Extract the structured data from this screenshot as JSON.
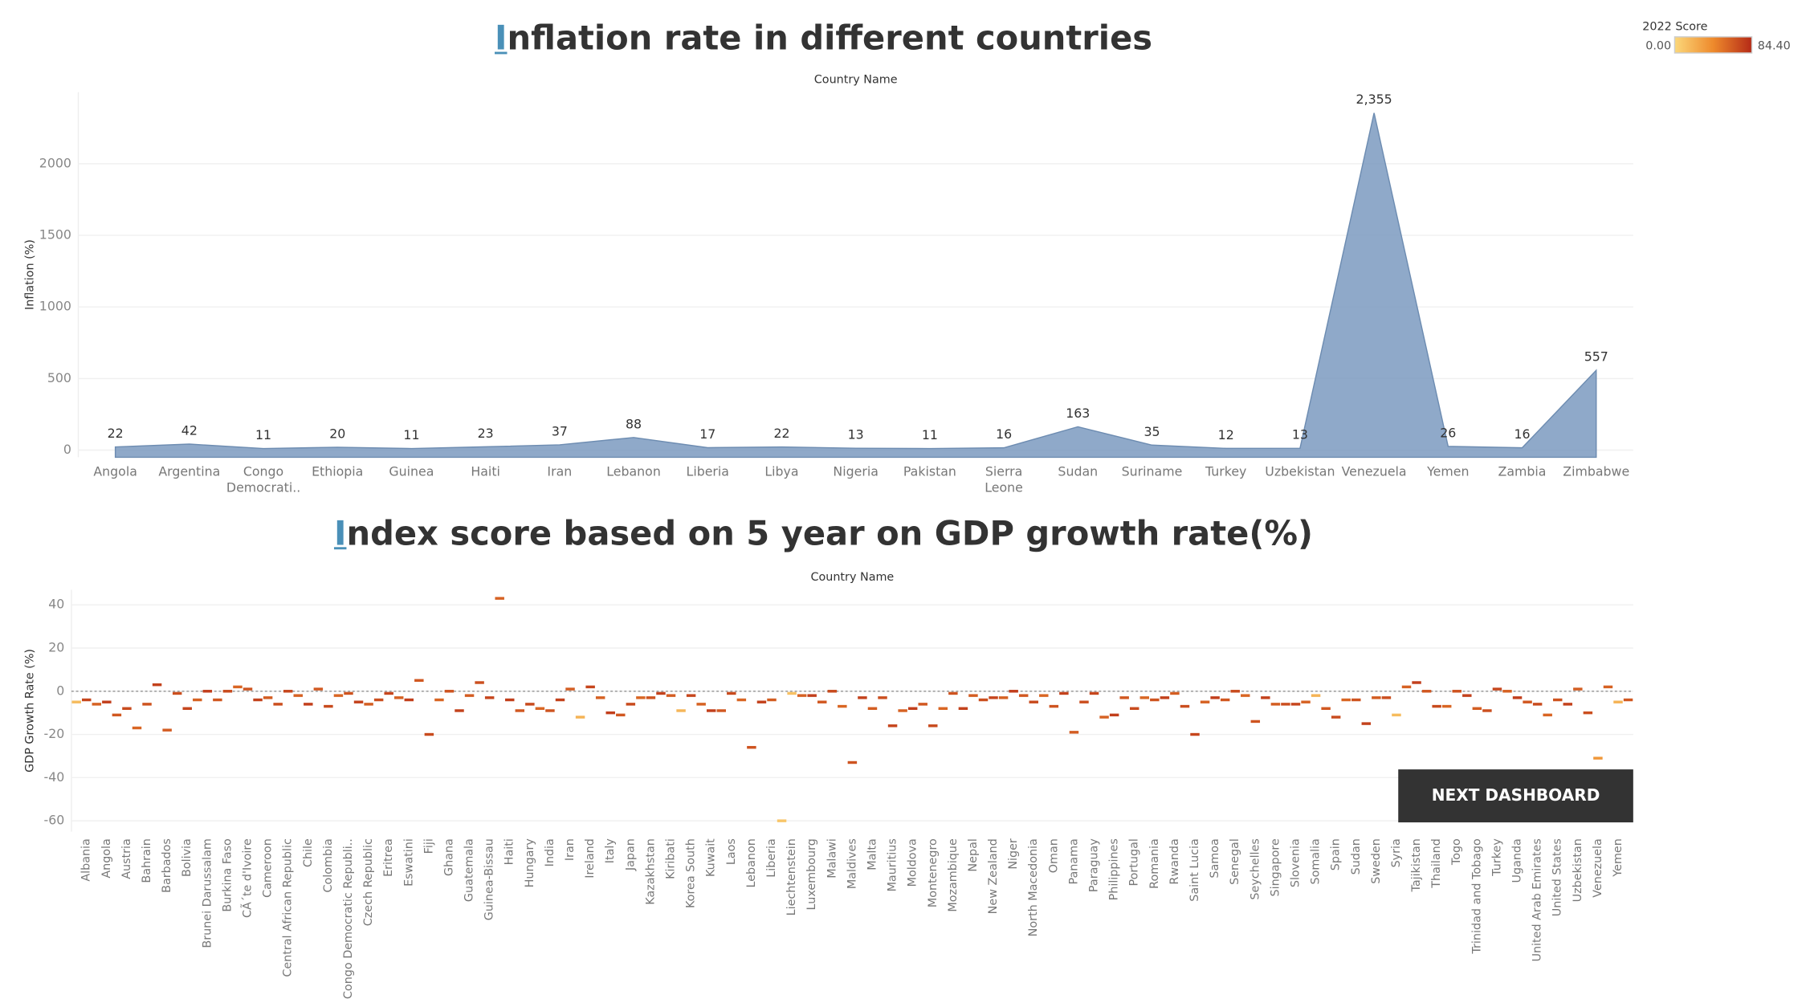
{
  "chart_data": [
    {
      "type": "area",
      "title": "Inflation rate in different countries",
      "x_label": "Country Name",
      "y_label": "Inflation (%)",
      "categories": [
        "Angola",
        "Argentina",
        "Congo Democrati..",
        "Ethiopia",
        "Guinea",
        "Haiti",
        "Iran",
        "Lebanon",
        "Liberia",
        "Libya",
        "Nigeria",
        "Pakistan",
        "Sierra Leone",
        "Sudan",
        "Suriname",
        "Turkey",
        "Uzbekistan",
        "Venezuela",
        "Yemen",
        "Zambia",
        "Zimbabwe"
      ],
      "values": [
        22,
        42,
        11,
        20,
        11,
        23,
        37,
        88,
        17,
        22,
        13,
        11,
        16,
        163,
        35,
        12,
        13,
        2355,
        26,
        16,
        557
      ],
      "value_labels": [
        "22",
        "42",
        "11",
        "20",
        "11",
        "23",
        "37",
        "88",
        "17",
        "22",
        "13",
        "11",
        "16",
        "163",
        "35",
        "12",
        "13",
        "2,355",
        "26",
        "16",
        "557"
      ],
      "color": "#7b9abf",
      "ylim": [
        -50,
        2500
      ],
      "yticks": [
        0,
        500,
        1000,
        1500,
        2000
      ],
      "grid": true
    },
    {
      "type": "gantt",
      "title": "Index score based on 5 year on GDP growth rate(%)",
      "x_label": "Country Name",
      "y_label": "GDP Growth Rate (%)",
      "categories": [
        null,
        "Albania",
        null,
        "Angola",
        null,
        "Austria",
        null,
        "Bahrain",
        null,
        "Barbados",
        null,
        "Bolivia",
        null,
        "Brunei Darussalam",
        null,
        "Burkina Faso",
        null,
        "CÃ´te d'Ivoire",
        null,
        "Cameroon",
        null,
        "Central African Republic",
        null,
        "Chile",
        null,
        "Colombia",
        null,
        "Congo Democratic Republi..",
        null,
        "Czech Republic",
        null,
        "Eritrea",
        null,
        "Eswatini",
        null,
        "Fiji",
        null,
        "Ghana",
        null,
        "Guatemala",
        null,
        "Guinea-Bissau",
        null,
        "Haiti",
        null,
        "Hungary",
        null,
        "India",
        null,
        "Iran",
        null,
        "Ireland",
        null,
        "Italy",
        null,
        "Japan",
        null,
        "Kazakhstan",
        null,
        "Kiribati",
        null,
        "Korea South",
        null,
        "Kuwait",
        null,
        "Laos",
        null,
        "Lebanon",
        null,
        "Liberia",
        null,
        "Liechtenstein",
        null,
        "Luxembourg",
        null,
        "Malawi",
        null,
        "Maldives",
        null,
        "Malta",
        null,
        "Mauritius",
        null,
        "Moldova",
        null,
        "Montenegro",
        null,
        "Mozambique",
        null,
        "Nepal",
        null,
        "New Zealand",
        null,
        "Niger",
        null,
        "North Macedonia",
        null,
        "Oman",
        null,
        "Panama",
        null,
        "Paraguay",
        null,
        "Philippines",
        null,
        "Portugal",
        null,
        "Romania",
        null,
        "Rwanda",
        null,
        "Saint Lucia",
        null,
        "Samoa",
        null,
        "Senegal",
        null,
        "Seychelles",
        null,
        "Singapore",
        null,
        "Slovenia",
        null,
        "Somalia",
        null,
        "Spain",
        null,
        "Sudan",
        null,
        "Sweden",
        null,
        "Syria",
        null,
        "Tajikistan",
        null,
        "Thailand",
        null,
        "Togo",
        null,
        "Trinidad and Tobago",
        null,
        "Turkey",
        null,
        "Uganda",
        null,
        "United Arab Emirates",
        null,
        "United States",
        null,
        "Uzbekistan",
        null,
        "Venezuela",
        null,
        "Yemen",
        null
      ],
      "values": [
        -5,
        -4,
        -6,
        -5,
        -11,
        -8,
        -17,
        -6,
        3,
        -18,
        -1,
        -8,
        -4,
        0,
        -4,
        0,
        2,
        1,
        -4,
        -3,
        -6,
        0,
        -2,
        -6,
        1,
        -7,
        -2,
        -1,
        -5,
        -6,
        -4,
        -1,
        -3,
        -4,
        5,
        -20,
        -4,
        0,
        -9,
        -2,
        4,
        -3,
        43,
        -4,
        -9,
        -6,
        -8,
        -9,
        -4,
        1,
        -12,
        2,
        -3,
        -10,
        -11,
        -6,
        -3,
        -3,
        -1,
        -2,
        -9,
        -2,
        -6,
        -9,
        -9,
        -1,
        -4,
        -26,
        -5,
        -4,
        -60,
        -1,
        -2,
        -2,
        -5,
        0,
        -7,
        -33,
        -3,
        -8,
        -3,
        -16,
        -9,
        -8,
        -6,
        -16,
        -8,
        -1,
        -8,
        -2,
        -4,
        -3,
        -3,
        0,
        -2,
        -5,
        -2,
        -7,
        -1,
        -19,
        -5,
        -1,
        -12,
        -11,
        -3,
        -8,
        -3,
        -4,
        -3,
        -1,
        -7,
        -20,
        -5,
        -3,
        -4,
        0,
        -2,
        -14,
        -3,
        -6,
        -6,
        -6,
        -5,
        -2,
        -8,
        -12,
        -4,
        -4,
        -15,
        -3,
        -3,
        -11,
        2,
        4,
        0,
        -7,
        -7,
        0,
        -2,
        -8,
        -9,
        1,
        0,
        -3,
        -5,
        -6,
        -11,
        -4,
        -6,
        1,
        -10,
        -31,
        2,
        -5,
        -4
      ],
      "scores": [
        15,
        72,
        60,
        75,
        64,
        70,
        58,
        66,
        74,
        62,
        68,
        72,
        60,
        75,
        64,
        70,
        58,
        66,
        74,
        62,
        68,
        72,
        60,
        75,
        64,
        70,
        58,
        66,
        74,
        62,
        68,
        72,
        60,
        75,
        64,
        70,
        58,
        66,
        74,
        62,
        68,
        72,
        60,
        75,
        64,
        70,
        58,
        66,
        74,
        62,
        20,
        72,
        60,
        75,
        64,
        70,
        58,
        66,
        74,
        62,
        18,
        72,
        60,
        75,
        64,
        70,
        58,
        66,
        74,
        62,
        10,
        12,
        60,
        75,
        64,
        70,
        58,
        66,
        74,
        62,
        68,
        72,
        60,
        75,
        64,
        70,
        58,
        66,
        74,
        62,
        68,
        72,
        60,
        75,
        64,
        70,
        58,
        66,
        74,
        62,
        68,
        72,
        60,
        75,
        64,
        70,
        58,
        66,
        74,
        62,
        68,
        72,
        60,
        75,
        64,
        70,
        58,
        66,
        74,
        62,
        68,
        72,
        60,
        20,
        64,
        70,
        58,
        66,
        74,
        62,
        68,
        15,
        60,
        75,
        64,
        70,
        58,
        66,
        74,
        62,
        68,
        72,
        60,
        75,
        64,
        70,
        58,
        66,
        74,
        62,
        68,
        35,
        60,
        20,
        64
      ],
      "color_scale": {
        "title": "2022 Score",
        "min": {
          "value": 0,
          "label": "0.00"
        },
        "max": {
          "value": 84.4,
          "label": "84.40"
        },
        "colors": [
          "#fbd77a",
          "#ee8a2c",
          "#b52a17"
        ]
      },
      "ylim": [
        -65,
        47
      ],
      "yticks": [
        -60,
        -40,
        -20,
        0,
        20,
        40
      ],
      "grid": true,
      "zero_line": true
    }
  ],
  "button": "NEXT DASHBOARD"
}
